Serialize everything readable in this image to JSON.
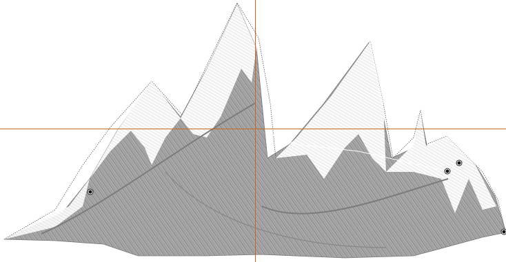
{
  "canvas": {
    "background": "#ffffff"
  },
  "design": {
    "fill_color": "#a8a8a8",
    "stitch_color": "#6e6e6e",
    "highlight_color": "#ffffff",
    "outline_color": "#5a5a5a"
  },
  "crosshair": {
    "color": "#c8651e"
  },
  "icons": {
    "control_node": "node-handle-icon"
  }
}
